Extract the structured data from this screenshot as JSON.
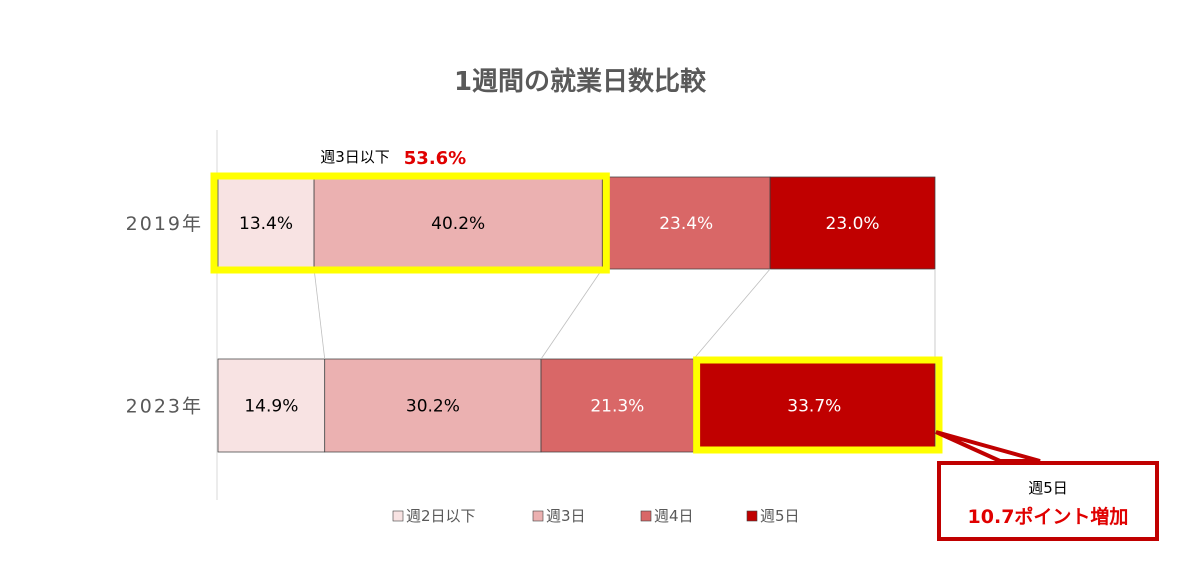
{
  "chart_data": {
    "type": "bar",
    "orientation": "horizontal",
    "stacked": true,
    "normalized": true,
    "title": "1週間の就業日数比較",
    "categories": [
      "2019年",
      "2023年"
    ],
    "series": [
      {
        "name": "週2日以下",
        "values": [
          13.4,
          14.9
        ],
        "labels": [
          "13.4%",
          "14.9%"
        ],
        "color": "#f8e3e3",
        "text_color": "#000000"
      },
      {
        "name": "週3日",
        "values": [
          40.2,
          30.2
        ],
        "labels": [
          "40.2%",
          "30.2%"
        ],
        "color": "#ebb1b1",
        "text_color": "#000000"
      },
      {
        "name": "週4日",
        "values": [
          23.4,
          21.3
        ],
        "labels": [
          "23.4%",
          "21.3%"
        ],
        "color": "#d96767",
        "text_color": "#ffffff"
      },
      {
        "name": "週5日",
        "values": [
          23.0,
          33.7
        ],
        "labels": [
          "23.0%",
          "33.7%"
        ],
        "color": "#c00000",
        "text_color": "#ffffff"
      }
    ],
    "legend_position": "bottom",
    "annotations": {
      "top_label": "週3日以下",
      "top_value": "53.6%",
      "callout_sub": "週5日",
      "callout_main": "10.7ポイント増加",
      "highlight_color": "#ffff00",
      "callout_color": "#c00000"
    }
  }
}
